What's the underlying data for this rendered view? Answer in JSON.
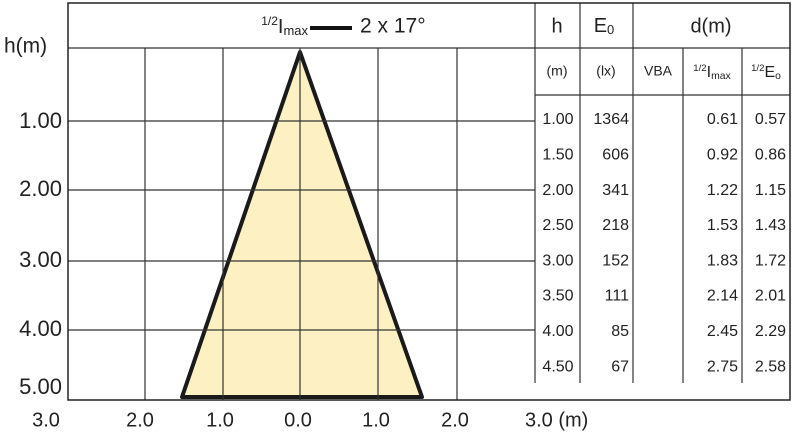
{
  "legend": {
    "fraction": "1/2",
    "symbol": "I",
    "subscript": "max",
    "label": "2 x 17°"
  },
  "y_axis": {
    "title": "h(m)",
    "ticks": [
      "1.00",
      "2.00",
      "3.00",
      "4.00",
      "5.00"
    ]
  },
  "x_axis": {
    "ticks": [
      "3.0",
      "2.0",
      "1.0",
      "0.0",
      "1.0",
      "2.0",
      "3.0 (m)"
    ]
  },
  "table": {
    "header": {
      "h": "h",
      "e0": {
        "symbol": "E",
        "subscript": "0"
      },
      "d": "d(m)"
    },
    "subheader": {
      "h": "(m)",
      "e0": "(lx)",
      "vba": "VBA",
      "half_imax": {
        "fraction": "1/2",
        "symbol": "I",
        "subscript": "max"
      },
      "half_e0": {
        "fraction": "1/2",
        "symbol": "E",
        "subscript": "o"
      }
    },
    "rows": [
      {
        "h": "1.00",
        "e0": "1364",
        "half_imax": "0.61",
        "half_e0": "0.57"
      },
      {
        "h": "1.50",
        "e0": "606",
        "half_imax": "0.92",
        "half_e0": "0.86"
      },
      {
        "h": "2.00",
        "e0": "341",
        "half_imax": "1.22",
        "half_e0": "1.15"
      },
      {
        "h": "2.50",
        "e0": "218",
        "half_imax": "1.53",
        "half_e0": "1.43"
      },
      {
        "h": "3.00",
        "e0": "152",
        "half_imax": "1.83",
        "half_e0": "1.72"
      },
      {
        "h": "3.50",
        "e0": "111",
        "half_imax": "2.14",
        "half_e0": "2.01"
      },
      {
        "h": "4.00",
        "e0": "85",
        "half_imax": "2.45",
        "half_e0": "2.29"
      },
      {
        "h": "4.50",
        "e0": "67",
        "half_imax": "2.75",
        "half_e0": "2.58"
      }
    ]
  }
}
